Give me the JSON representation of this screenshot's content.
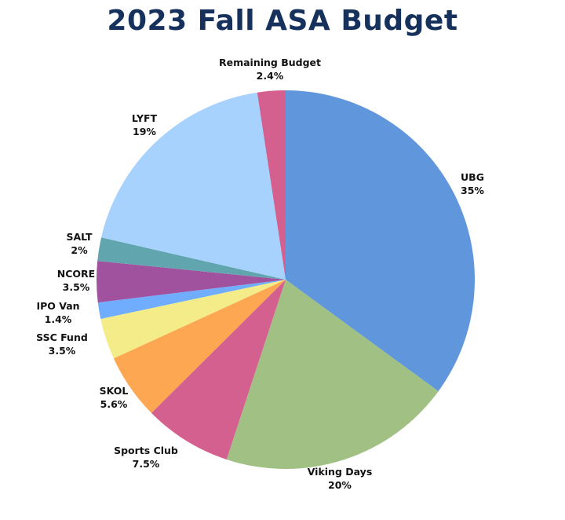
{
  "chart_data": {
    "type": "pie",
    "title": "2023 Fall ASA Budget",
    "title_color": "#16325c",
    "slices": [
      {
        "label": "UBG",
        "value_label": "35%",
        "value": 35,
        "color": "#6096dc"
      },
      {
        "label": "Viking Days",
        "value_label": "20%",
        "value": 20,
        "color": "#a1c184"
      },
      {
        "label": "Sports Club",
        "value_label": "7.5%",
        "value": 7.5,
        "color": "#d46090"
      },
      {
        "label": "SKOL",
        "value_label": "5.6%",
        "value": 5.6,
        "color": "#fda752"
      },
      {
        "label": "SSC Fund",
        "value_label": "3.5%",
        "value": 3.5,
        "color": "#f3ec88"
      },
      {
        "label": "IPO Van",
        "value_label": "1.4%",
        "value": 1.4,
        "color": "#70adff"
      },
      {
        "label": "NCORE",
        "value_label": "3.5%",
        "value": 3.5,
        "color": "#a1529e"
      },
      {
        "label": "SALT",
        "value_label": "2%",
        "value": 2,
        "color": "#61a6ae"
      },
      {
        "label": "LYFT",
        "value_label": "19%",
        "value": 19,
        "color": "#a7d2fe"
      },
      {
        "label": "Remaining Budget",
        "value_label": "2.4%",
        "value": 2.4,
        "color": "#d46090"
      }
    ]
  }
}
